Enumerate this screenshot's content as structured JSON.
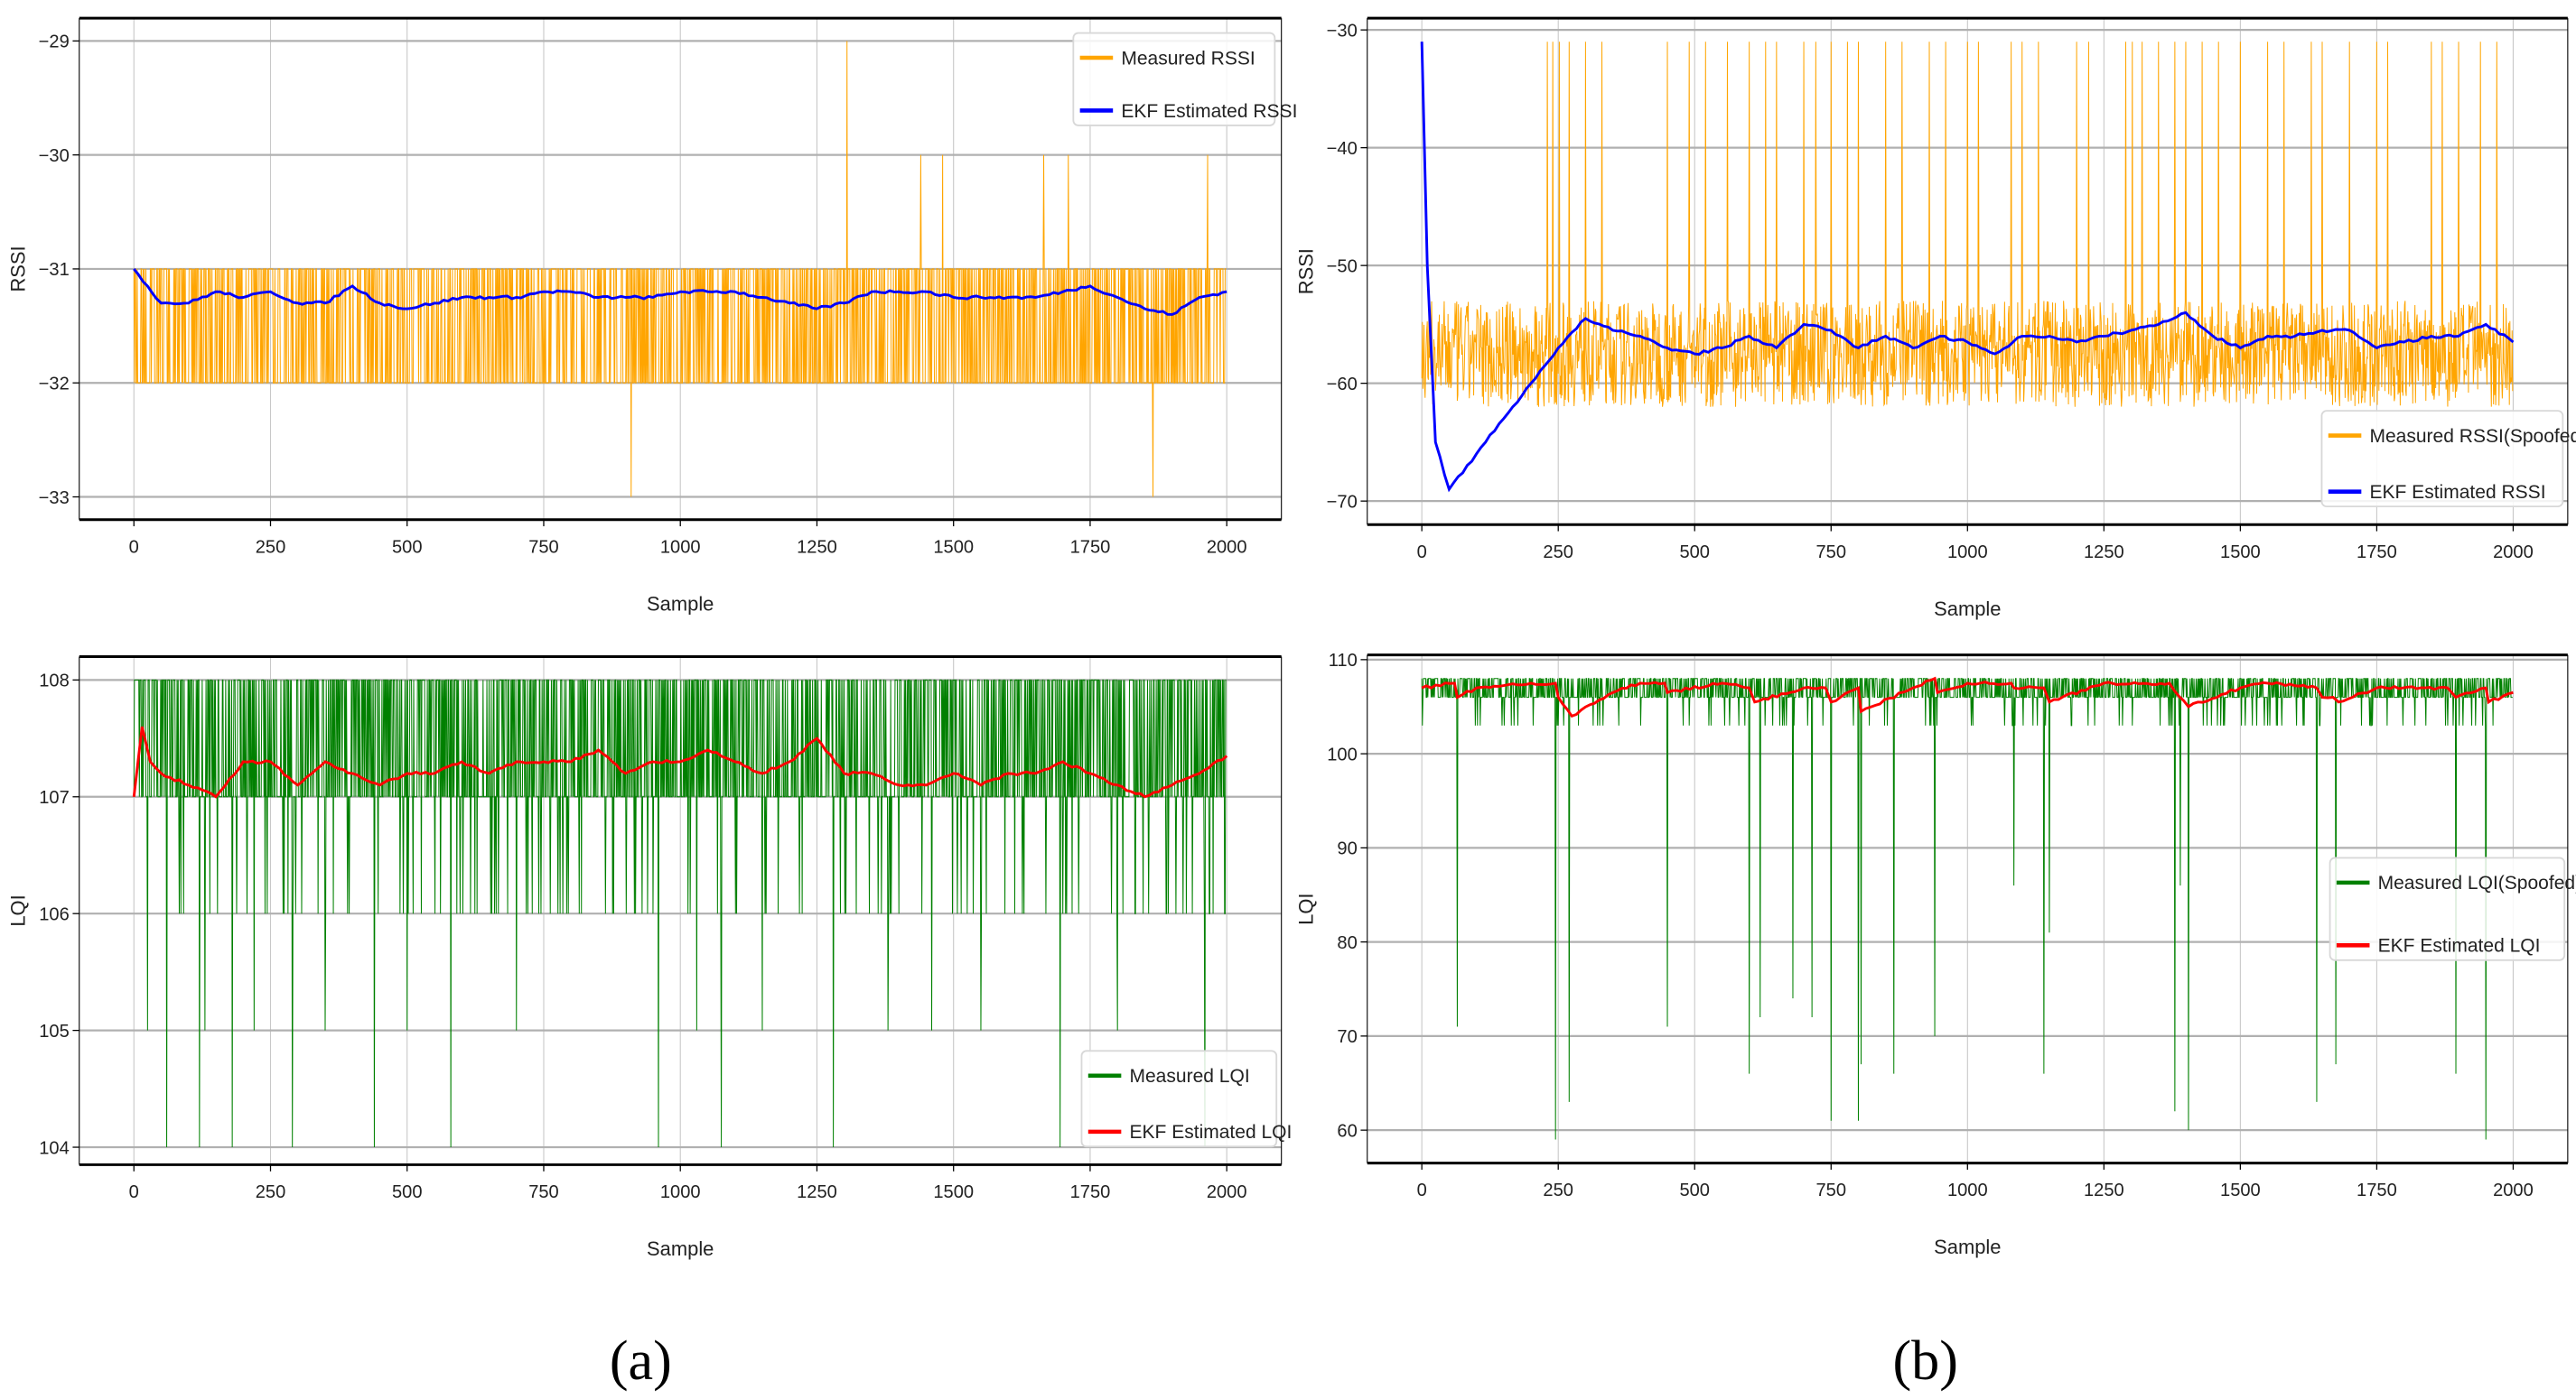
{
  "captions": {
    "a": "(a)",
    "b": "(b)"
  },
  "colors": {
    "measured_rssi": "#FFA500",
    "ekf_rssi": "#0000FF",
    "measured_lqi": "#008000",
    "ekf_lqi": "#FF0000",
    "grid": "#b0b0b0"
  },
  "chart_data": [
    {
      "id": "a-rssi",
      "type": "line",
      "xlabel": "Sample",
      "ylabel": "RSSI",
      "xlim": [
        -100,
        2100
      ],
      "ylim": [
        -33.2,
        -28.8
      ],
      "grid": true,
      "legend_placement": "top-right",
      "xticks": [
        "0",
        "250",
        "500",
        "750",
        "1000",
        "1250",
        "1500",
        "1750",
        "2000"
      ],
      "yticks": [
        "-29",
        "-30",
        "-31",
        "-32",
        "-33"
      ],
      "series": [
        {
          "name": "Measured RSSI",
          "color": "#FFA500",
          "kind": "measured",
          "n": 2000,
          "levels": [
            -31,
            -32
          ],
          "spikes": [
            [
              910,
              -33
            ],
            [
              1305,
              -29
            ],
            [
              1440,
              -30
            ],
            [
              1480,
              -30
            ],
            [
              1665,
              -30
            ],
            [
              1710,
              -30
            ],
            [
              1865,
              -33
            ],
            [
              1965,
              -30
            ]
          ]
        },
        {
          "name": "EKF Estimated RSSI",
          "color": "#0000FF",
          "kind": "estimate",
          "x": [
            0,
            50,
            100,
            150,
            200,
            250,
            300,
            350,
            400,
            450,
            500,
            550,
            600,
            650,
            700,
            750,
            800,
            850,
            900,
            950,
            1000,
            1050,
            1100,
            1150,
            1200,
            1250,
            1300,
            1350,
            1400,
            1450,
            1500,
            1550,
            1600,
            1650,
            1700,
            1750,
            1800,
            1850,
            1900,
            1950,
            2000
          ],
          "y": [
            -31.0,
            -31.3,
            -31.3,
            -31.2,
            -31.25,
            -31.2,
            -31.3,
            -31.3,
            -31.15,
            -31.3,
            -31.35,
            -31.3,
            -31.25,
            -31.25,
            -31.25,
            -31.2,
            -31.2,
            -31.25,
            -31.25,
            -31.25,
            -31.2,
            -31.2,
            -31.2,
            -31.25,
            -31.3,
            -31.35,
            -31.3,
            -31.2,
            -31.2,
            -31.2,
            -31.25,
            -31.25,
            -31.25,
            -31.25,
            -31.2,
            -31.15,
            -31.25,
            -31.35,
            -31.4,
            -31.25,
            -31.2
          ]
        }
      ]
    },
    {
      "id": "b-rssi",
      "type": "line",
      "xlabel": "Sample",
      "ylabel": "RSSI",
      "xlim": [
        -100,
        2100
      ],
      "ylim": [
        -72,
        -29
      ],
      "grid": true,
      "legend_placement": "lower-right",
      "xticks": [
        "0",
        "250",
        "500",
        "750",
        "1000",
        "1250",
        "1500",
        "1750",
        "2000"
      ],
      "yticks": [
        "-30",
        "-40",
        "-50",
        "-60",
        "-70"
      ],
      "series": [
        {
          "name": "Measured RSSI(Spoofed)",
          "color": "#FFA500",
          "kind": "measured",
          "n": 2000,
          "levels": [
            -53,
            -62
          ],
          "spikes": [
            [
              230,
              -31
            ],
            [
              240,
              -31
            ],
            [
              252,
              -31
            ],
            [
              270,
              -31
            ],
            [
              300,
              -31
            ],
            [
              330,
              -31
            ],
            [
              450,
              -31
            ],
            [
              490,
              -31
            ],
            [
              520,
              -31
            ],
            [
              560,
              -31
            ],
            [
              600,
              -31
            ],
            [
              630,
              -31
            ],
            [
              650,
              -31
            ],
            [
              700,
              -31
            ],
            [
              722,
              -31
            ],
            [
              750,
              -31
            ],
            [
              780,
              -31
            ],
            [
              800,
              -31
            ],
            [
              850,
              -31
            ],
            [
              880,
              -31
            ],
            [
              930,
              -31
            ],
            [
              960,
              -31
            ],
            [
              1000,
              -31
            ],
            [
              1020,
              -31
            ],
            [
              1080,
              -31
            ],
            [
              1100,
              -31
            ],
            [
              1130,
              -31
            ],
            [
              1200,
              -31
            ],
            [
              1222,
              -31
            ],
            [
              1290,
              -31
            ],
            [
              1302,
              -31
            ],
            [
              1320,
              -31
            ],
            [
              1350,
              -31
            ],
            [
              1380,
              -31
            ],
            [
              1400,
              -31
            ],
            [
              1430,
              -31
            ],
            [
              1460,
              -31
            ],
            [
              1500,
              -31
            ],
            [
              1550,
              -31
            ],
            [
              1580,
              -31
            ],
            [
              1630,
              -31
            ],
            [
              1650,
              -31
            ],
            [
              1700,
              -31
            ],
            [
              1750,
              -31
            ],
            [
              1770,
              -31
            ],
            [
              1850,
              -31
            ],
            [
              1870,
              -31
            ],
            [
              1900,
              -31
            ],
            [
              1940,
              -31
            ],
            [
              1970,
              -31
            ]
          ]
        },
        {
          "name": "EKF Estimated RSSI",
          "color": "#0000FF",
          "kind": "estimate",
          "x": [
            0,
            10,
            25,
            50,
            100,
            150,
            200,
            250,
            300,
            350,
            400,
            450,
            500,
            550,
            600,
            650,
            700,
            750,
            800,
            850,
            900,
            950,
            1000,
            1050,
            1100,
            1150,
            1200,
            1250,
            1300,
            1350,
            1400,
            1450,
            1500,
            1550,
            1600,
            1650,
            1700,
            1750,
            1800,
            1850,
            1900,
            1950,
            2000
          ],
          "y": [
            -31,
            -50,
            -65,
            -69,
            -66,
            -63,
            -60,
            -57,
            -54.5,
            -55.5,
            -56,
            -57,
            -57.5,
            -57,
            -56,
            -57,
            -55,
            -55.5,
            -57,
            -56,
            -57,
            -56,
            -56.5,
            -57.5,
            -56,
            -56,
            -56.5,
            -56,
            -55.5,
            -55,
            -54,
            -56,
            -57,
            -56,
            -56,
            -55.5,
            -55.5,
            -57,
            -56.5,
            -56,
            -56,
            -55,
            -56.5
          ]
        }
      ]
    },
    {
      "id": "a-lqi",
      "type": "line",
      "xlabel": "Sample",
      "ylabel": "LQI",
      "xlim": [
        -100,
        2100
      ],
      "ylim": [
        103.85,
        108.2
      ],
      "grid": true,
      "legend_placement": "lower-right",
      "xticks": [
        "0",
        "250",
        "500",
        "750",
        "1000",
        "1250",
        "1500",
        "1750",
        "2000"
      ],
      "yticks": [
        "108",
        "107",
        "106",
        "105",
        "104"
      ],
      "series": [
        {
          "name": "Measured LQI",
          "color": "#008000",
          "kind": "measured",
          "n": 2000,
          "levels": [
            108,
            107
          ],
          "drop_level": 106,
          "spikes": [
            [
              25,
              105
            ],
            [
              60,
              104
            ],
            [
              120,
              104
            ],
            [
              130,
              105
            ],
            [
              180,
              104
            ],
            [
              220,
              105
            ],
            [
              290,
              104
            ],
            [
              350,
              105
            ],
            [
              440,
              104
            ],
            [
              500,
              105
            ],
            [
              580,
              104
            ],
            [
              700,
              105
            ],
            [
              960,
              104
            ],
            [
              1030,
              105
            ],
            [
              1075,
              104
            ],
            [
              1150,
              105
            ],
            [
              1280,
              104
            ],
            [
              1380,
              105
            ],
            [
              1460,
              105
            ],
            [
              1550,
              105
            ],
            [
              1695,
              104
            ],
            [
              1800,
              105
            ],
            [
              1960,
              104
            ]
          ]
        },
        {
          "name": "EKF Estimated LQI",
          "color": "#FF0000",
          "kind": "estimate",
          "x": [
            0,
            15,
            30,
            50,
            100,
            150,
            200,
            250,
            300,
            350,
            400,
            450,
            500,
            550,
            600,
            650,
            700,
            750,
            800,
            850,
            900,
            950,
            1000,
            1050,
            1100,
            1150,
            1200,
            1250,
            1300,
            1350,
            1400,
            1450,
            1500,
            1550,
            1600,
            1650,
            1700,
            1750,
            1800,
            1850,
            1900,
            1950,
            2000
          ],
          "y": [
            107,
            107.6,
            107.3,
            107.2,
            107.1,
            107.0,
            107.3,
            107.3,
            107.1,
            107.3,
            107.2,
            107.1,
            107.2,
            107.2,
            107.3,
            107.2,
            107.3,
            107.3,
            107.3,
            107.4,
            107.2,
            107.3,
            107.3,
            107.4,
            107.3,
            107.2,
            107.3,
            107.5,
            107.2,
            107.2,
            107.1,
            107.1,
            107.2,
            107.1,
            107.2,
            107.2,
            107.3,
            107.2,
            107.1,
            107.0,
            107.1,
            107.2,
            107.35
          ]
        }
      ]
    },
    {
      "id": "b-lqi",
      "type": "line",
      "xlabel": "Sample",
      "ylabel": "LQI",
      "xlim": [
        -100,
        2100
      ],
      "ylim": [
        56.5,
        110.5
      ],
      "grid": true,
      "legend_placement": "center-right",
      "xticks": [
        "0",
        "250",
        "500",
        "750",
        "1000",
        "1250",
        "1500",
        "1750",
        "2000"
      ],
      "yticks": [
        "110",
        "100",
        "90",
        "80",
        "70",
        "60"
      ],
      "series": [
        {
          "name": "Measured LQI(Spoofed)",
          "color": "#008000",
          "kind": "measured",
          "n": 2000,
          "levels": [
            108,
            106
          ],
          "drop_level": 103,
          "spikes": [
            [
              65,
              71
            ],
            [
              245,
              59
            ],
            [
              270,
              63
            ],
            [
              450,
              71
            ],
            [
              600,
              66
            ],
            [
              620,
              72
            ],
            [
              680,
              74
            ],
            [
              715,
              72
            ],
            [
              750,
              61
            ],
            [
              800,
              61
            ],
            [
              805,
              67
            ],
            [
              865,
              66
            ],
            [
              940,
              70
            ],
            [
              1085,
              86
            ],
            [
              1140,
              66
            ],
            [
              1150,
              81
            ],
            [
              1380,
              62
            ],
            [
              1390,
              86
            ],
            [
              1405,
              60
            ],
            [
              1640,
              63
            ],
            [
              1675,
              67
            ],
            [
              1895,
              66
            ],
            [
              1950,
              59
            ]
          ]
        },
        {
          "name": "EKF Estimated LQI",
          "color": "#FF0000",
          "kind": "estimate",
          "x": [
            0,
            60,
            65,
            100,
            200,
            245,
            250,
            275,
            350,
            400,
            445,
            450,
            550,
            600,
            610,
            700,
            740,
            750,
            800,
            805,
            900,
            940,
            945,
            1000,
            1080,
            1085,
            1140,
            1150,
            1250,
            1370,
            1405,
            1500,
            1550,
            1640,
            1650,
            1670,
            1680,
            1750,
            1880,
            1895,
            1950,
            1955,
            2000
          ],
          "y": [
            107,
            107.5,
            106,
            107,
            107.5,
            107.5,
            106,
            104,
            106.5,
            107.5,
            107.5,
            106.5,
            107.5,
            107,
            105.5,
            107,
            107,
            105.5,
            107,
            104.5,
            107,
            108,
            106.5,
            107.5,
            107.5,
            107,
            107,
            105.5,
            107.5,
            107.5,
            105,
            107,
            107.5,
            107,
            106,
            106,
            105.5,
            107,
            107,
            106,
            107,
            105.5,
            106.5
          ]
        }
      ]
    }
  ]
}
